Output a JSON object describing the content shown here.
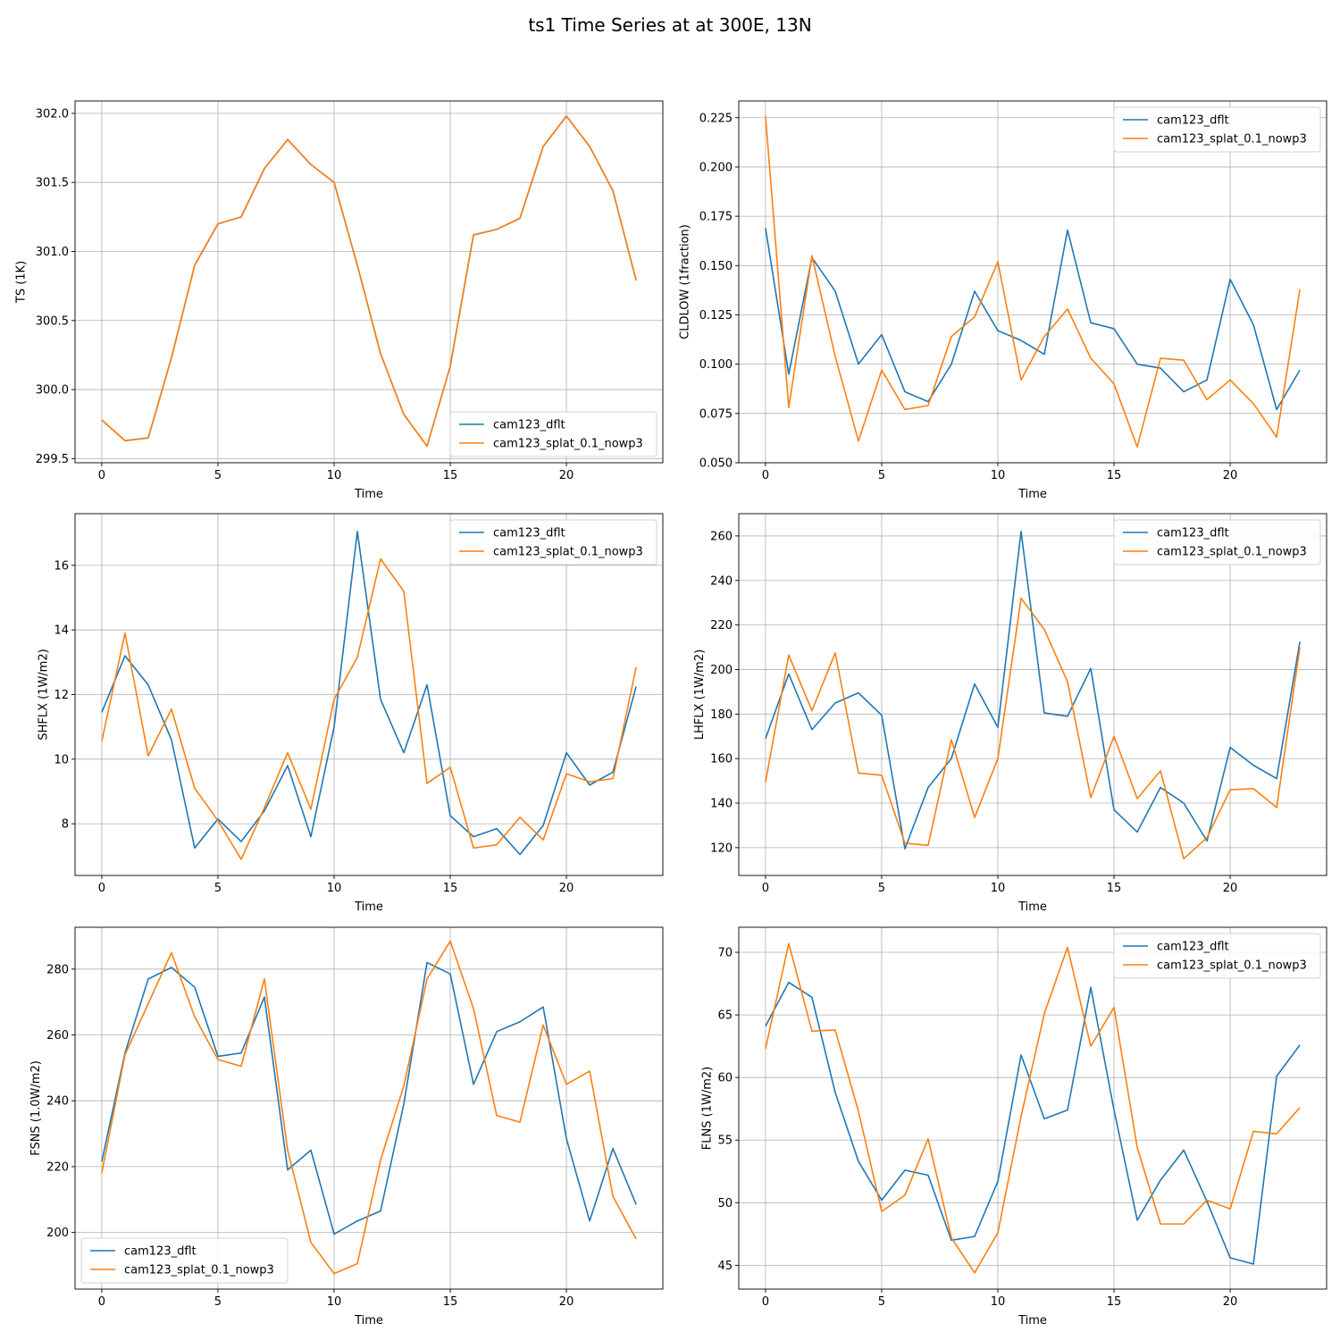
{
  "figure": {
    "title": "ts1 Time Series at at 300E, 13N"
  },
  "colors": {
    "series1": "#1f77b4",
    "series2": "#ff7f0e",
    "grid": "#b0b0b0",
    "axis": "#000000"
  },
  "chart_data": [
    {
      "type": "line",
      "title": "",
      "xlabel": "Time",
      "ylabel": "TS (1K)",
      "xlim": [
        -1.15,
        24.15
      ],
      "ylim": [
        299.47,
        302.09
      ],
      "xticks": [
        0,
        5,
        10,
        15,
        20
      ],
      "yticks": [
        299.5,
        300.0,
        300.5,
        301.0,
        301.5,
        302.0
      ],
      "ytick_labels": [
        "299.5",
        "300.0",
        "300.5",
        "301.0",
        "301.5",
        "302.0"
      ],
      "grid": true,
      "legend_loc": "lower-right",
      "x": [
        0,
        1,
        2,
        3,
        4,
        5,
        6,
        7,
        8,
        9,
        10,
        11,
        12,
        13,
        14,
        15,
        16,
        17,
        18,
        19,
        20,
        21,
        22,
        23
      ],
      "series": [
        {
          "name": "cam123_dflt",
          "values": [
            299.78,
            299.63,
            299.65,
            300.23,
            300.9,
            301.2,
            301.25,
            301.6,
            301.81,
            301.63,
            301.5,
            300.9,
            300.26,
            299.82,
            299.59,
            300.17,
            301.12,
            301.16,
            301.24,
            301.76,
            301.98,
            301.76,
            301.44,
            300.79
          ]
        },
        {
          "name": "cam123_splat_0.1_nowp3",
          "values": [
            299.78,
            299.63,
            299.65,
            300.23,
            300.9,
            301.2,
            301.25,
            301.6,
            301.81,
            301.63,
            301.5,
            300.9,
            300.26,
            299.82,
            299.59,
            300.17,
            301.12,
            301.16,
            301.24,
            301.76,
            301.98,
            301.76,
            301.44,
            300.79
          ]
        }
      ]
    },
    {
      "type": "line",
      "title": "",
      "xlabel": "Time",
      "ylabel": "CLDLOW (1fraction)",
      "xlim": [
        -1.15,
        24.15
      ],
      "ylim": [
        0.05,
        0.2335
      ],
      "xticks": [
        0,
        5,
        10,
        15,
        20
      ],
      "yticks": [
        0.05,
        0.075,
        0.1,
        0.125,
        0.15,
        0.175,
        0.2,
        0.225
      ],
      "ytick_labels": [
        "0.050",
        "0.075",
        "0.100",
        "0.125",
        "0.150",
        "0.175",
        "0.200",
        "0.225"
      ],
      "grid": true,
      "legend_loc": "upper-right",
      "x": [
        0,
        1,
        2,
        3,
        4,
        5,
        6,
        7,
        8,
        9,
        10,
        11,
        12,
        13,
        14,
        15,
        16,
        17,
        18,
        19,
        20,
        21,
        22,
        23
      ],
      "series": [
        {
          "name": "cam123_dflt",
          "values": [
            0.169,
            0.095,
            0.154,
            0.137,
            0.1,
            0.115,
            0.086,
            0.081,
            0.1,
            0.137,
            0.117,
            0.112,
            0.105,
            0.168,
            0.121,
            0.118,
            0.1,
            0.098,
            0.086,
            0.092,
            0.143,
            0.12,
            0.077,
            0.097
          ]
        },
        {
          "name": "cam123_splat_0.1_nowp3",
          "values": [
            0.226,
            0.078,
            0.155,
            0.104,
            0.061,
            0.097,
            0.077,
            0.079,
            0.114,
            0.124,
            0.152,
            0.092,
            0.114,
            0.128,
            0.103,
            0.09,
            0.058,
            0.103,
            0.102,
            0.082,
            0.092,
            0.08,
            0.063,
            0.138
          ]
        }
      ]
    },
    {
      "type": "line",
      "title": "",
      "xlabel": "Time",
      "ylabel": "SHFLX (1W/m2)",
      "xlim": [
        -1.15,
        24.15
      ],
      "ylim": [
        6.4,
        17.6
      ],
      "xticks": [
        0,
        5,
        10,
        15,
        20
      ],
      "yticks": [
        8,
        10,
        12,
        14,
        16
      ],
      "ytick_labels": [
        "8",
        "10",
        "12",
        "14",
        "16"
      ],
      "grid": true,
      "legend_loc": "upper-right",
      "x": [
        0,
        1,
        2,
        3,
        4,
        5,
        6,
        7,
        8,
        9,
        10,
        11,
        12,
        13,
        14,
        15,
        16,
        17,
        18,
        19,
        20,
        21,
        22,
        23
      ],
      "series": [
        {
          "name": "cam123_dflt",
          "values": [
            11.45,
            13.2,
            12.3,
            10.6,
            7.25,
            8.15,
            7.45,
            8.4,
            9.8,
            7.6,
            11.0,
            17.05,
            11.85,
            10.2,
            12.3,
            8.25,
            7.6,
            7.85,
            7.05,
            7.95,
            10.2,
            9.2,
            9.6,
            12.25
          ]
        },
        {
          "name": "cam123_splat_0.1_nowp3",
          "values": [
            10.55,
            13.9,
            10.1,
            11.55,
            9.1,
            8.1,
            6.9,
            8.5,
            10.2,
            8.45,
            11.85,
            13.15,
            16.2,
            15.2,
            9.25,
            9.75,
            7.25,
            7.35,
            8.2,
            7.5,
            9.55,
            9.3,
            9.4,
            12.85
          ]
        }
      ]
    },
    {
      "type": "line",
      "title": "",
      "xlabel": "Time",
      "ylabel": "LHFLX (1W/m2)",
      "xlim": [
        -1.15,
        24.15
      ],
      "ylim": [
        107.5,
        270.0
      ],
      "xticks": [
        0,
        5,
        10,
        15,
        20
      ],
      "yticks": [
        120,
        140,
        160,
        180,
        200,
        220,
        240,
        260
      ],
      "ytick_labels": [
        "120",
        "140",
        "160",
        "180",
        "200",
        "220",
        "240",
        "260"
      ],
      "grid": true,
      "legend_loc": "upper-right",
      "x": [
        0,
        1,
        2,
        3,
        4,
        5,
        6,
        7,
        8,
        9,
        10,
        11,
        12,
        13,
        14,
        15,
        16,
        17,
        18,
        19,
        20,
        21,
        22,
        23
      ],
      "series": [
        {
          "name": "cam123_dflt",
          "values": [
            169,
            198,
            173,
            185,
            189.5,
            179.5,
            119.5,
            147,
            160,
            193.5,
            174,
            262,
            180.5,
            179,
            200.5,
            137,
            127,
            147,
            140,
            123,
            165,
            157,
            151,
            212.5
          ]
        },
        {
          "name": "cam123_splat_0.1_nowp3",
          "values": [
            149.5,
            206.5,
            181.5,
            207.5,
            153.5,
            152.5,
            122,
            121,
            168.5,
            133.5,
            160,
            232,
            218,
            194.5,
            142.5,
            170,
            142,
            154.5,
            115,
            124.5,
            146,
            146.5,
            138,
            210
          ]
        }
      ]
    },
    {
      "type": "line",
      "title": "",
      "xlabel": "Time",
      "ylabel": "FSNS (1.0W/m2)",
      "xlim": [
        -1.15,
        24.15
      ],
      "ylim": [
        182.8,
        292.7
      ],
      "xticks": [
        0,
        5,
        10,
        15,
        20
      ],
      "yticks": [
        200,
        220,
        240,
        260,
        280
      ],
      "ytick_labels": [
        "200",
        "220",
        "240",
        "260",
        "280"
      ],
      "grid": true,
      "legend_loc": "lower-left",
      "x": [
        0,
        1,
        2,
        3,
        4,
        5,
        6,
        7,
        8,
        9,
        10,
        11,
        12,
        13,
        14,
        15,
        16,
        17,
        18,
        19,
        20,
        21,
        22,
        23
      ],
      "series": [
        {
          "name": "cam123_dflt",
          "values": [
            221.5,
            254.5,
            277,
            280.5,
            274.5,
            253.5,
            254.5,
            271.5,
            219,
            225,
            199.5,
            203.5,
            206.5,
            239,
            282,
            278.5,
            245,
            261,
            264,
            268.5,
            228.5,
            203.5,
            225.5,
            208.5
          ]
        },
        {
          "name": "cam123_splat_0.1_nowp3",
          "values": [
            218,
            254,
            269.5,
            285,
            265.5,
            252.5,
            250.5,
            277,
            225,
            197,
            187.5,
            190.5,
            222,
            244.5,
            277,
            288.5,
            268,
            235.5,
            233.5,
            263,
            245,
            249,
            211,
            198
          ]
        }
      ]
    },
    {
      "type": "line",
      "title": "",
      "xlabel": "Time",
      "ylabel": "FLNS (1W/m2)",
      "xlim": [
        -1.15,
        24.15
      ],
      "ylim": [
        43.1,
        72.0
      ],
      "xticks": [
        0,
        5,
        10,
        15,
        20
      ],
      "yticks": [
        45,
        50,
        55,
        60,
        65,
        70
      ],
      "ytick_labels": [
        "45",
        "50",
        "55",
        "60",
        "65",
        "70"
      ],
      "grid": true,
      "legend_loc": "upper-right",
      "x": [
        0,
        1,
        2,
        3,
        4,
        5,
        6,
        7,
        8,
        9,
        10,
        11,
        12,
        13,
        14,
        15,
        16,
        17,
        18,
        19,
        20,
        21,
        22,
        23
      ],
      "series": [
        {
          "name": "cam123_dflt",
          "values": [
            64.1,
            67.6,
            66.4,
            58.8,
            53.3,
            50.2,
            52.6,
            52.2,
            47.0,
            47.3,
            51.7,
            61.8,
            56.7,
            57.4,
            67.2,
            57.4,
            48.6,
            51.8,
            54.2,
            50.1,
            45.6,
            45.1,
            60.1,
            62.6
          ]
        },
        {
          "name": "cam123_splat_0.1_nowp3",
          "values": [
            62.3,
            70.7,
            63.7,
            63.8,
            57.3,
            49.3,
            50.6,
            55.1,
            47.2,
            44.4,
            47.6,
            56.9,
            65.1,
            70.4,
            62.5,
            65.6,
            54.4,
            48.3,
            48.3,
            50.2,
            49.5,
            55.7,
            55.5,
            57.6
          ]
        }
      ]
    }
  ]
}
